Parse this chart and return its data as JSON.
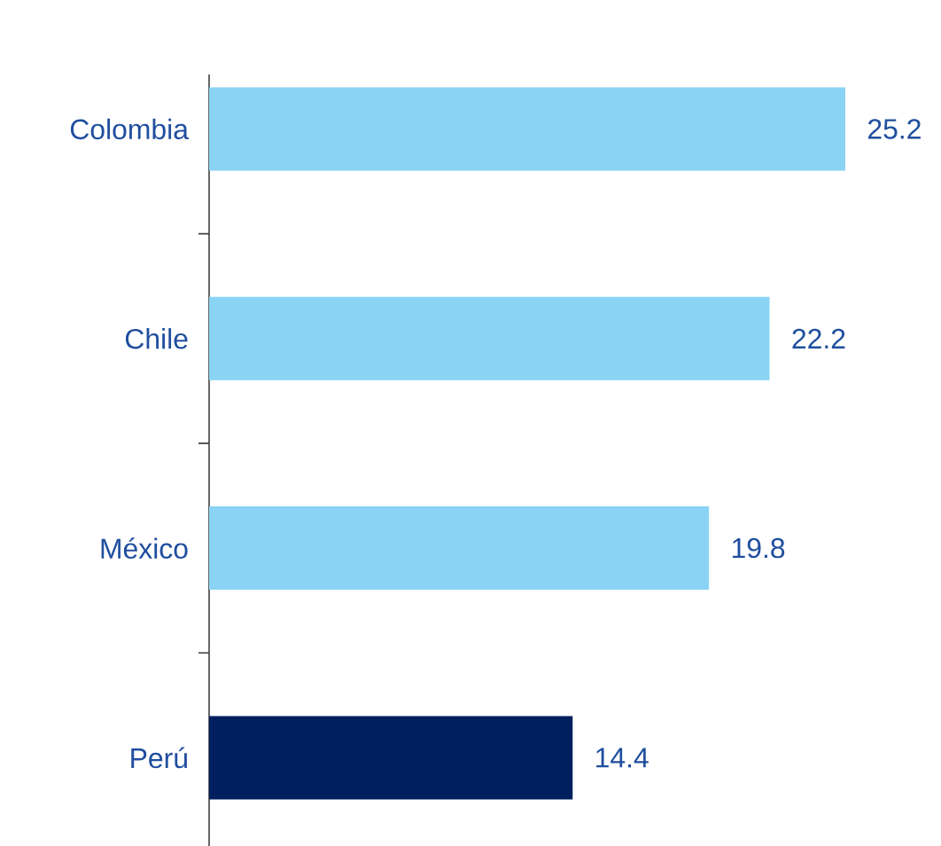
{
  "chart_data": {
    "type": "bar",
    "orientation": "horizontal",
    "categories": [
      "Colombia",
      "Chile",
      "México",
      "Perú"
    ],
    "values": [
      25.2,
      22.2,
      19.8,
      14.4
    ],
    "colors": [
      "#8ad3f4",
      "#8ad3f4",
      "#8ad3f4",
      "#001f5f"
    ],
    "data_labels": true
  }
}
